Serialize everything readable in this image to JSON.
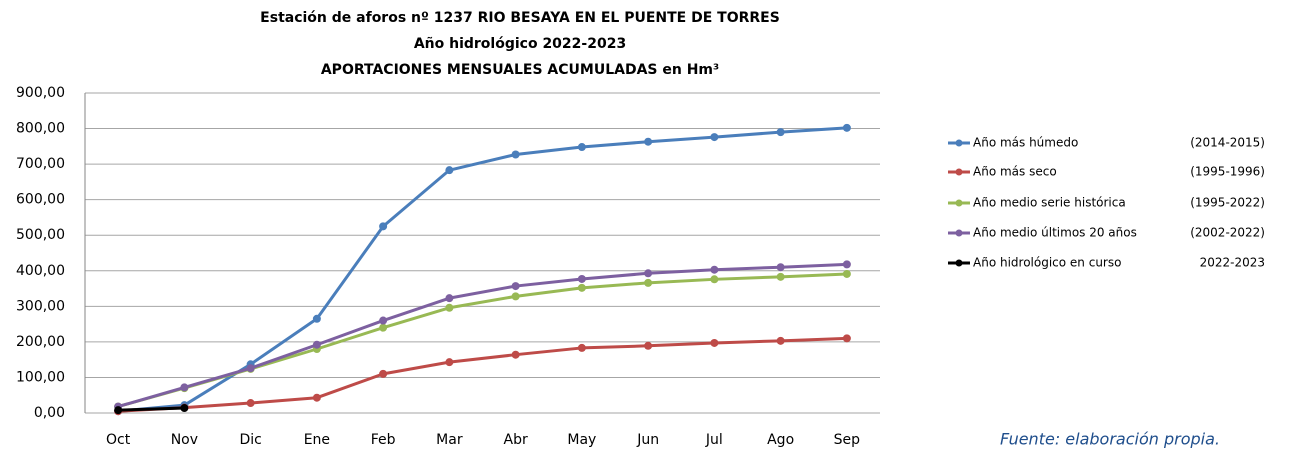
{
  "chart_data": {
    "type": "line",
    "title": [
      "Estación de aforos nº 1237 RIO BESAYA EN EL PUENTE DE TORRES",
      "Año hidrológico 2022-2023",
      "APORTACIONES MENSUALES ACUMULADAS en Hm³"
    ],
    "categories": [
      "Oct",
      "Nov",
      "Dic",
      "Ene",
      "Feb",
      "Mar",
      "Abr",
      "May",
      "Jun",
      "Jul",
      "Ago",
      "Sep"
    ],
    "series": [
      {
        "name": "Año más húmedo",
        "period": "(2014-2015)",
        "color": "#4a7ebb",
        "values": [
          5,
          22,
          137,
          265,
          525,
          683,
          727,
          748,
          763,
          776,
          790,
          802
        ]
      },
      {
        "name": "Año más seco",
        "period": "(1995-1996)",
        "color": "#be4b48",
        "values": [
          5,
          15,
          28,
          43,
          110,
          143,
          164,
          183,
          189,
          197,
          203,
          210
        ]
      },
      {
        "name": "Año medio serie histórica",
        "period": "(1995-2022)",
        "color": "#98b954",
        "values": [
          18,
          70,
          124,
          180,
          240,
          296,
          328,
          352,
          366,
          376,
          383,
          391
        ]
      },
      {
        "name": "Año medio últimos 20 años",
        "period": "(2002-2022)",
        "color": "#7d60a0",
        "values": [
          18,
          72,
          126,
          192,
          260,
          323,
          357,
          377,
          393,
          403,
          410,
          418
        ]
      },
      {
        "name": "Año hidrológico en curso",
        "period": "2022-2023",
        "color": "#000000",
        "values": [
          8,
          14,
          null,
          null,
          null,
          null,
          null,
          null,
          null,
          null,
          null,
          null
        ]
      }
    ],
    "ylim": [
      0,
      900
    ],
    "yticks": [
      {
        "value": 0,
        "label": "0,00"
      },
      {
        "value": 100,
        "label": "100,00"
      },
      {
        "value": 200,
        "label": "200,00"
      },
      {
        "value": 300,
        "label": "300,00"
      },
      {
        "value": 400,
        "label": "400,00"
      },
      {
        "value": 500,
        "label": "500,00"
      },
      {
        "value": 600,
        "label": "600,00"
      },
      {
        "value": 700,
        "label": "700,00"
      },
      {
        "value": 800,
        "label": "800,00"
      },
      {
        "value": 900,
        "label": "900,00"
      }
    ],
    "grid": true,
    "legend": "right",
    "source": "Fuente: elaboración propia."
  }
}
